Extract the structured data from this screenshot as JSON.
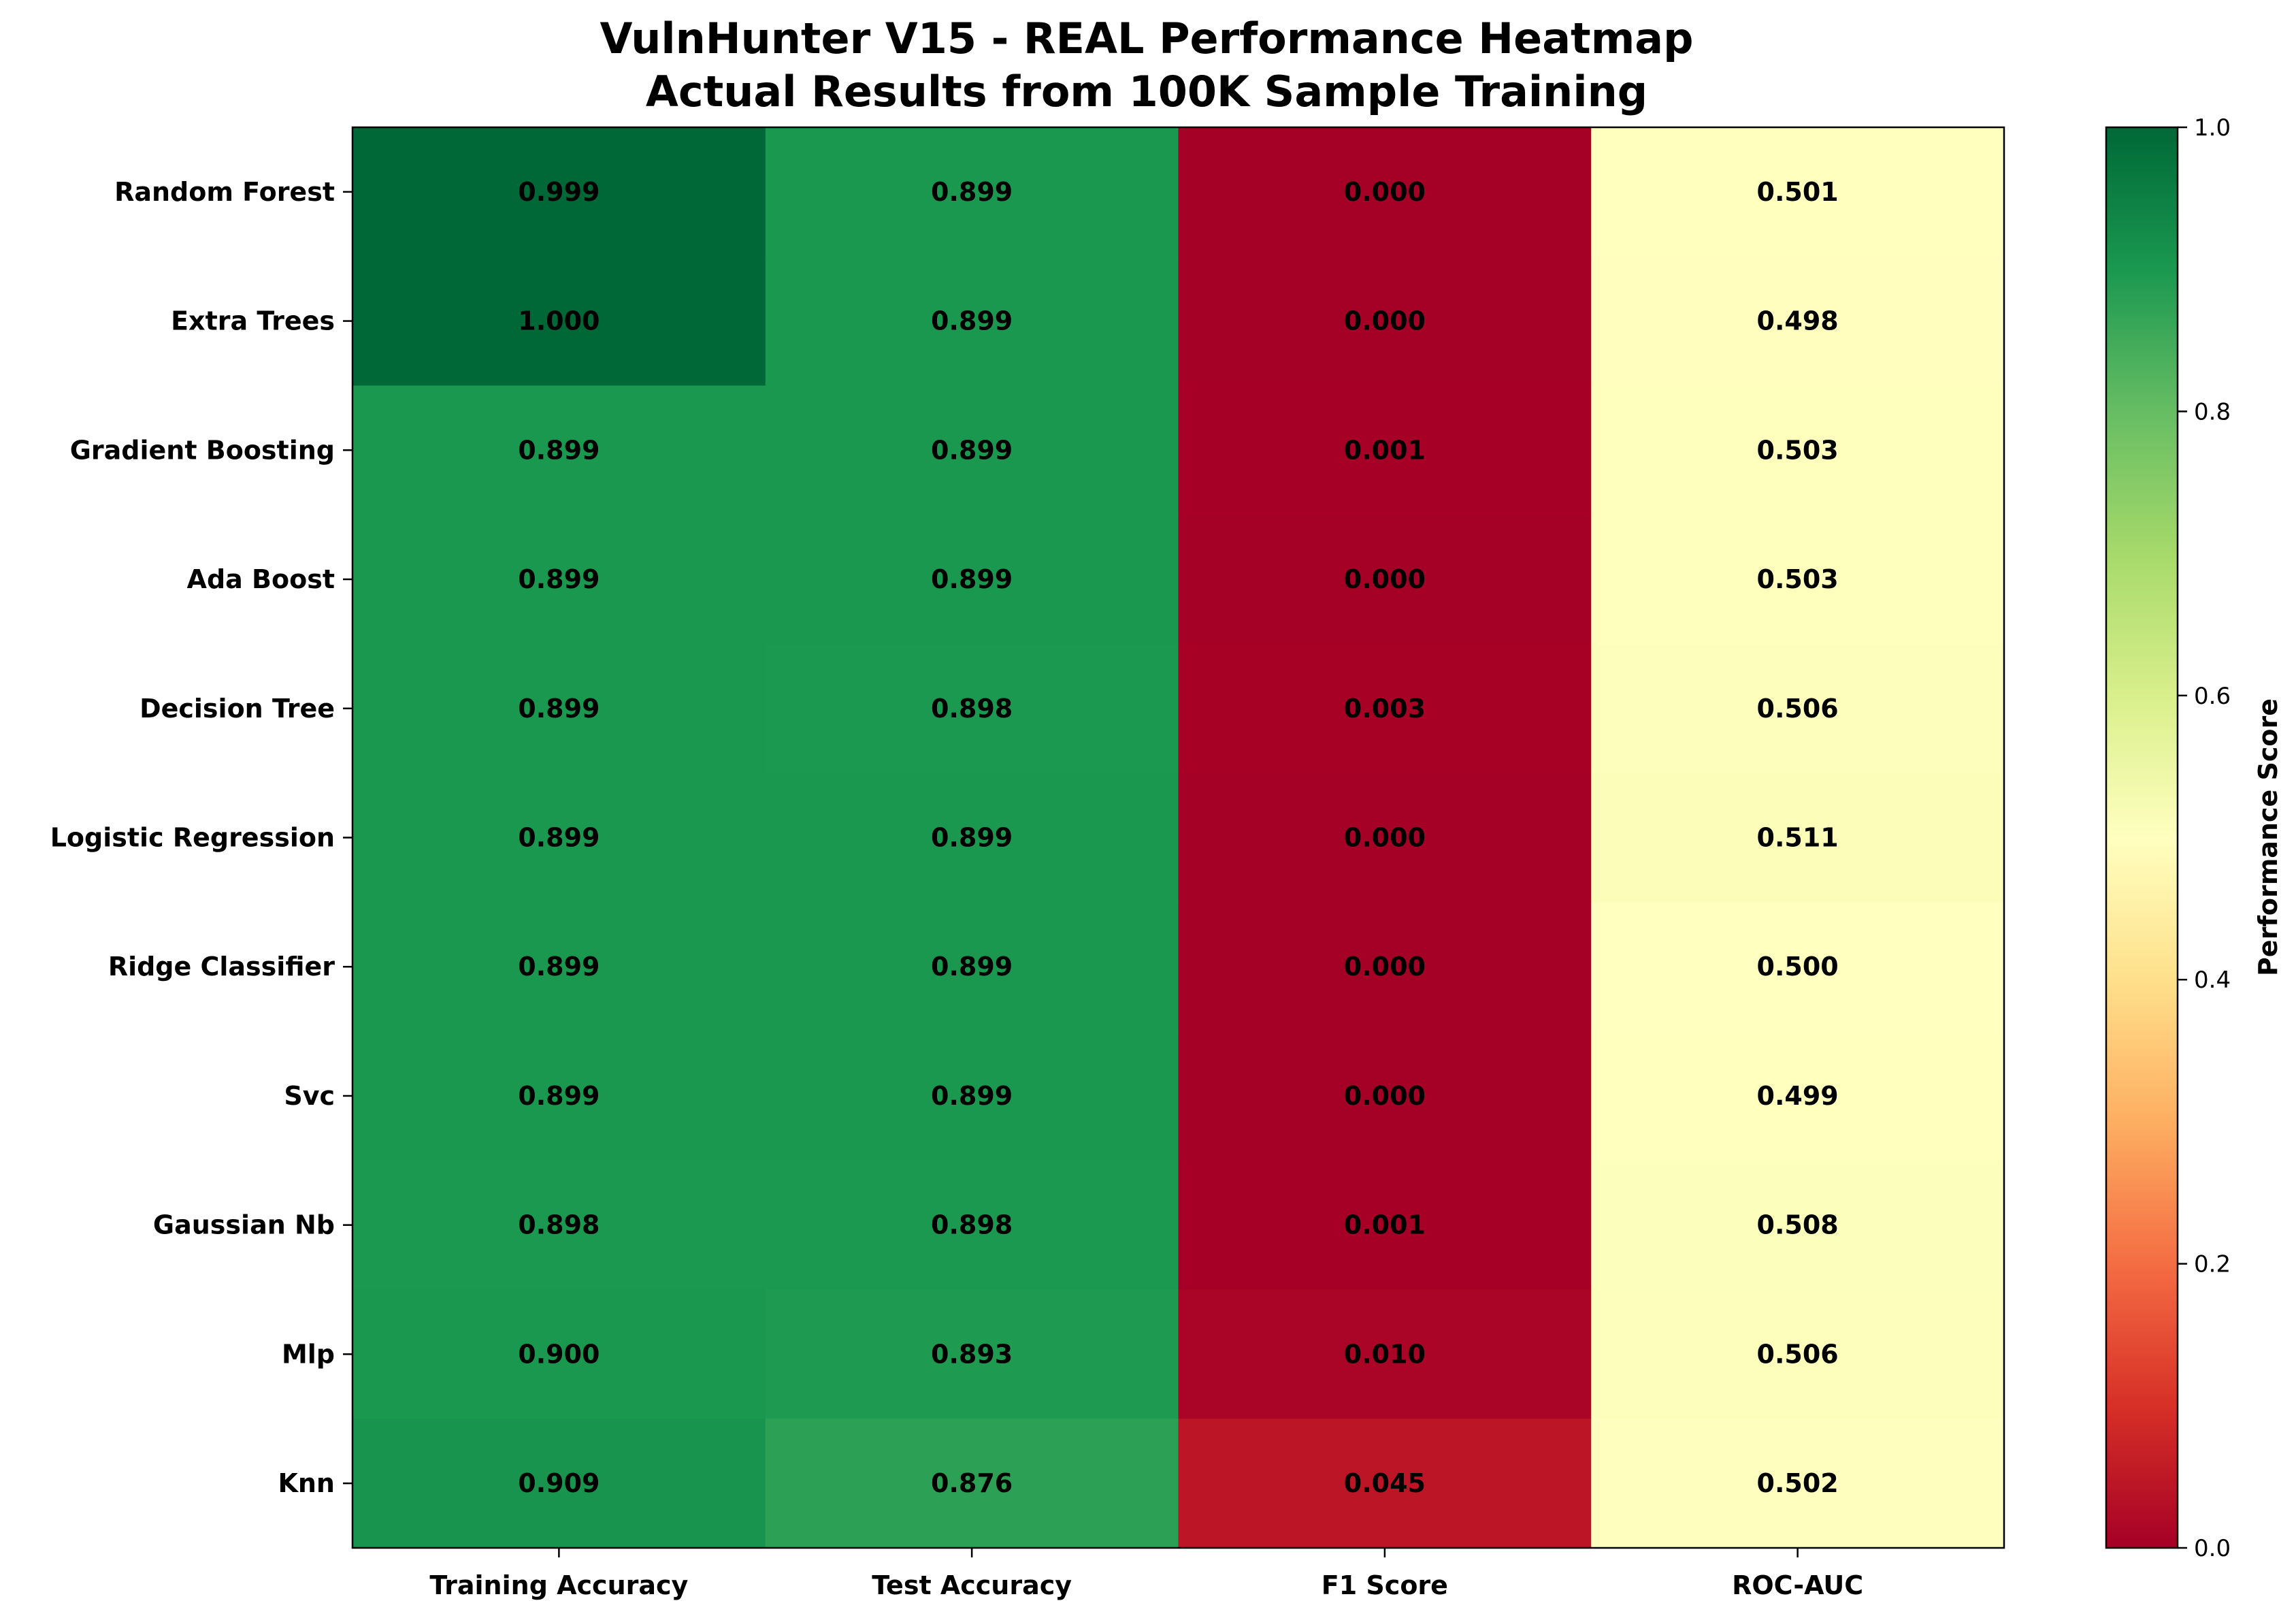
{
  "chart_data": {
    "type": "heatmap",
    "title_line1": "VulnHunter V15 - REAL Performance Heatmap",
    "title_line2": "Actual Results from 100K Sample Training",
    "columns": [
      "Training Accuracy",
      "Test Accuracy",
      "F1 Score",
      "ROC-AUC"
    ],
    "rows": [
      "Random Forest",
      "Extra Trees",
      "Gradient Boosting",
      "Ada Boost",
      "Decision Tree",
      "Logistic Regression",
      "Ridge Classifier",
      "Svc",
      "Gaussian Nb",
      "Mlp",
      "Knn"
    ],
    "values": [
      [
        0.999,
        0.899,
        0.0,
        0.501
      ],
      [
        1.0,
        0.899,
        0.0,
        0.498
      ],
      [
        0.899,
        0.899,
        0.001,
        0.503
      ],
      [
        0.899,
        0.899,
        0.0,
        0.503
      ],
      [
        0.899,
        0.898,
        0.003,
        0.506
      ],
      [
        0.899,
        0.899,
        0.0,
        0.511
      ],
      [
        0.899,
        0.899,
        0.0,
        0.5
      ],
      [
        0.899,
        0.899,
        0.0,
        0.499
      ],
      [
        0.898,
        0.898,
        0.001,
        0.508
      ],
      [
        0.9,
        0.893,
        0.01,
        0.506
      ],
      [
        0.909,
        0.876,
        0.045,
        0.502
      ]
    ],
    "cell_labels": [
      [
        "0.999",
        "0.899",
        "0.000",
        "0.501"
      ],
      [
        "1.000",
        "0.899",
        "0.000",
        "0.498"
      ],
      [
        "0.899",
        "0.899",
        "0.001",
        "0.503"
      ],
      [
        "0.899",
        "0.899",
        "0.000",
        "0.503"
      ],
      [
        "0.899",
        "0.898",
        "0.003",
        "0.506"
      ],
      [
        "0.899",
        "0.899",
        "0.000",
        "0.511"
      ],
      [
        "0.899",
        "0.899",
        "0.000",
        "0.500"
      ],
      [
        "0.899",
        "0.899",
        "0.000",
        "0.499"
      ],
      [
        "0.898",
        "0.898",
        "0.001",
        "0.508"
      ],
      [
        "0.900",
        "0.893",
        "0.010",
        "0.506"
      ],
      [
        "0.909",
        "0.876",
        "0.045",
        "0.502"
      ]
    ],
    "colormap": "RdYlGn",
    "vmin": 0.0,
    "vmax": 1.0,
    "colorbar": {
      "label": "Performance Score",
      "ticks": [
        "0.0",
        "0.2",
        "0.4",
        "0.6",
        "0.8",
        "1.0"
      ]
    },
    "colorbar_stops": [
      {
        "v": 0.0,
        "color": "#a50026"
      },
      {
        "v": 0.1,
        "color": "#d73027"
      },
      {
        "v": 0.2,
        "color": "#f46d43"
      },
      {
        "v": 0.3,
        "color": "#fdae61"
      },
      {
        "v": 0.4,
        "color": "#fee08b"
      },
      {
        "v": 0.5,
        "color": "#ffffbf"
      },
      {
        "v": 0.6,
        "color": "#d9ef8b"
      },
      {
        "v": 0.7,
        "color": "#a6d96a"
      },
      {
        "v": 0.8,
        "color": "#66bd63"
      },
      {
        "v": 0.9,
        "color": "#1a9850"
      },
      {
        "v": 1.0,
        "color": "#006837"
      }
    ]
  }
}
